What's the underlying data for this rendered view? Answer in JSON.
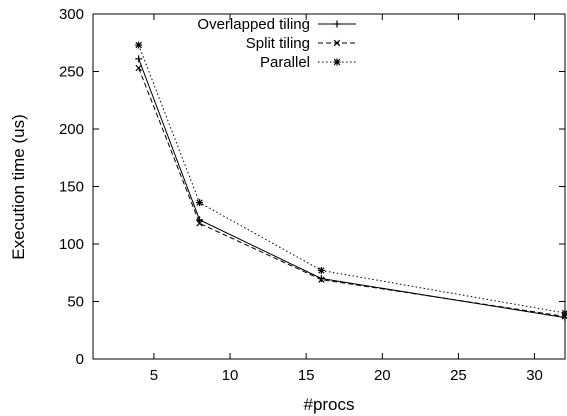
{
  "chart_data": {
    "type": "line",
    "xlabel": "#procs",
    "ylabel": "Execution time (us)",
    "xlim": [
      1,
      32
    ],
    "ylim": [
      0,
      300
    ],
    "xticks": [
      5,
      10,
      15,
      20,
      25,
      30
    ],
    "yticks": [
      0,
      50,
      100,
      150,
      200,
      250,
      300
    ],
    "grid": false,
    "legend_position": "top-center",
    "x": [
      4,
      8,
      16,
      32
    ],
    "series": [
      {
        "name": "Overlapped tiling",
        "values": [
          261,
          121,
          70,
          36
        ],
        "line_style": "solid",
        "marker": "plus",
        "color": "#000000"
      },
      {
        "name": "Split tiling",
        "values": [
          253,
          118,
          69,
          37
        ],
        "line_style": "dashed",
        "marker": "cross",
        "color": "#000000"
      },
      {
        "name": "Parallel",
        "values": [
          273,
          136,
          77,
          40
        ],
        "line_style": "dotted",
        "marker": "star",
        "color": "#000000"
      }
    ]
  }
}
